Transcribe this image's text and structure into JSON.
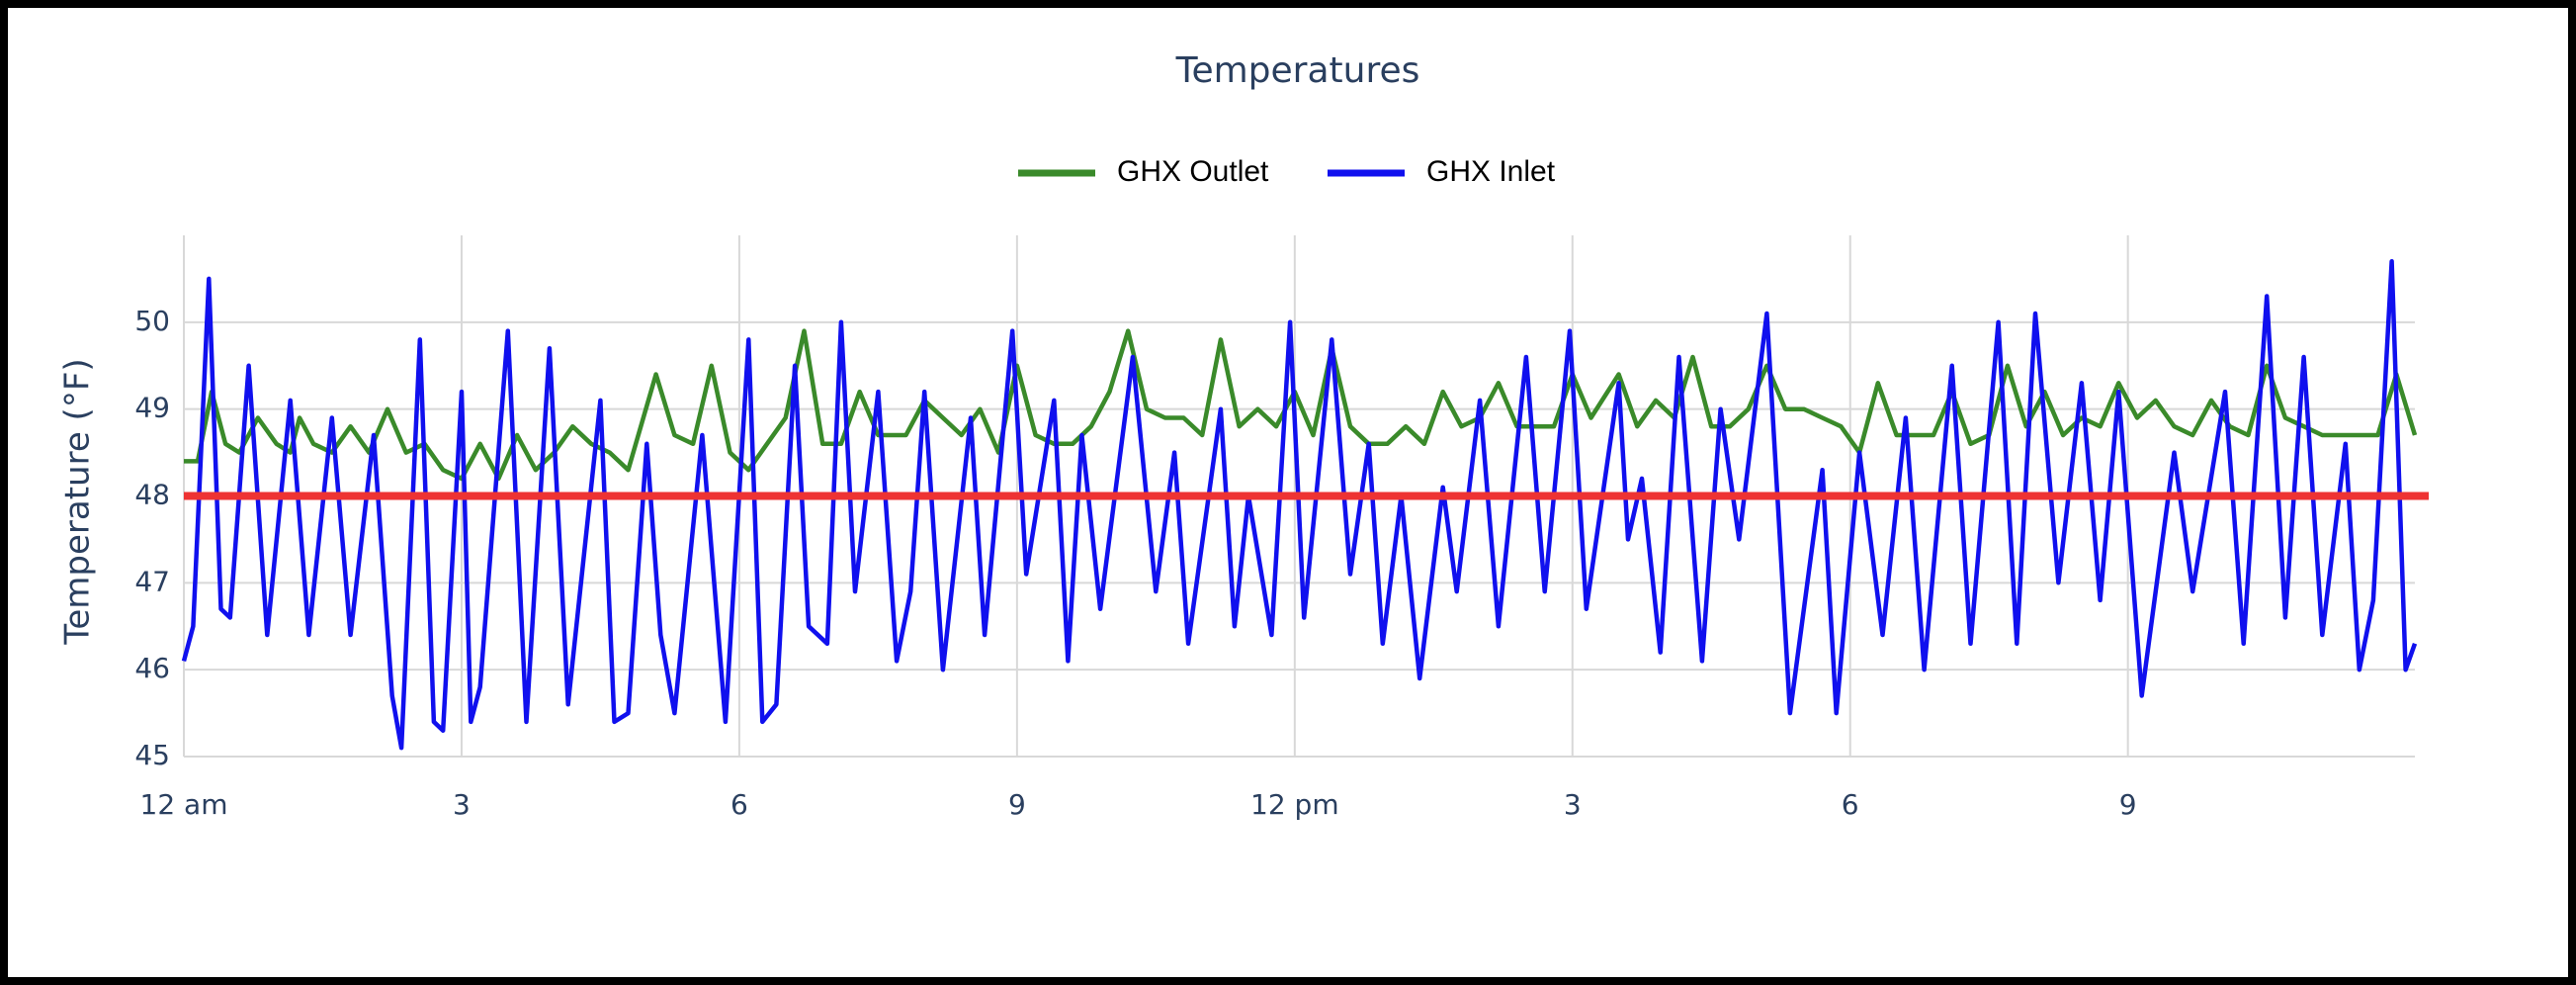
{
  "chart_data": {
    "type": "line",
    "title": "Temperatures",
    "y_label": "Temperature (°F)",
    "xlim": [
      0,
      24.1
    ],
    "ylim": [
      45,
      51
    ],
    "xticks": [
      {
        "value": 0,
        "label": "12 am"
      },
      3,
      6,
      9,
      {
        "value": 12,
        "label": "12 pm"
      },
      {
        "value": 15,
        "label": "3"
      },
      {
        "value": 18,
        "label": "6"
      },
      {
        "value": 21,
        "label": "9"
      }
    ],
    "yticks": [
      45,
      46,
      47,
      48,
      49,
      50
    ],
    "grid": true,
    "reference_line": {
      "value": 48,
      "color": "#ee3333"
    },
    "series": [
      {
        "name": "GHX Outlet",
        "color": "#3a8a2a",
        "x": [
          0,
          0.15,
          0.3,
          0.45,
          0.6,
          0.8,
          1.0,
          1.15,
          1.25,
          1.4,
          1.6,
          1.8,
          2.0,
          2.2,
          2.4,
          2.6,
          2.8,
          3.0,
          3.2,
          3.4,
          3.6,
          3.8,
          4.0,
          4.2,
          4.4,
          4.6,
          4.8,
          5.1,
          5.3,
          5.5,
          5.7,
          5.9,
          6.1,
          6.3,
          6.5,
          6.7,
          6.9,
          7.1,
          7.3,
          7.5,
          7.8,
          8.0,
          8.2,
          8.4,
          8.6,
          8.8,
          9.0,
          9.2,
          9.4,
          9.6,
          9.8,
          10.0,
          10.2,
          10.4,
          10.6,
          10.8,
          11.0,
          11.2,
          11.4,
          11.6,
          11.8,
          12.0,
          12.2,
          12.4,
          12.6,
          12.8,
          13.0,
          13.2,
          13.4,
          13.6,
          13.8,
          14.0,
          14.2,
          14.4,
          14.6,
          14.8,
          15.0,
          15.2,
          15.5,
          15.7,
          15.9,
          16.1,
          16.3,
          16.5,
          16.7,
          16.9,
          17.1,
          17.3,
          17.5,
          17.7,
          17.9,
          18.1,
          18.3,
          18.5,
          18.7,
          18.9,
          19.1,
          19.3,
          19.5,
          19.7,
          19.9,
          20.1,
          20.3,
          20.5,
          20.7,
          20.9,
          21.1,
          21.3,
          21.5,
          21.7,
          21.9,
          22.1,
          22.3,
          22.5,
          22.7,
          22.9,
          23.1,
          23.3,
          23.5,
          23.7,
          23.9,
          24.1
        ],
        "values": [
          48.4,
          48.4,
          49.2,
          48.6,
          48.5,
          48.9,
          48.6,
          48.5,
          48.9,
          48.6,
          48.5,
          48.8,
          48.5,
          49.0,
          48.5,
          48.6,
          48.3,
          48.2,
          48.6,
          48.2,
          48.7,
          48.3,
          48.5,
          48.8,
          48.6,
          48.5,
          48.3,
          49.4,
          48.7,
          48.6,
          49.5,
          48.5,
          48.3,
          48.6,
          48.9,
          49.9,
          48.6,
          48.6,
          49.2,
          48.7,
          48.7,
          49.1,
          48.9,
          48.7,
          49.0,
          48.5,
          49.5,
          48.7,
          48.6,
          48.6,
          48.8,
          49.2,
          49.9,
          49.0,
          48.9,
          48.9,
          48.7,
          49.8,
          48.8,
          49.0,
          48.8,
          49.2,
          48.7,
          49.7,
          48.8,
          48.6,
          48.6,
          48.8,
          48.6,
          49.2,
          48.8,
          48.9,
          49.3,
          48.8,
          48.8,
          48.8,
          49.4,
          48.9,
          49.4,
          48.8,
          49.1,
          48.9,
          49.6,
          48.8,
          48.8,
          49.0,
          49.5,
          49.0,
          49.0,
          48.9,
          48.8,
          48.5,
          49.3,
          48.7,
          48.7,
          48.7,
          49.2,
          48.6,
          48.7,
          49.5,
          48.8,
          49.2,
          48.7,
          48.9,
          48.8,
          49.3,
          48.9,
          49.1,
          48.8,
          48.7,
          49.1,
          48.8,
          48.7,
          49.5,
          48.9,
          48.8,
          48.7,
          48.7,
          48.7,
          48.7,
          49.4,
          48.7
        ]
      },
      {
        "name": "GHX Inlet",
        "color": "#1010ee",
        "x": [
          0,
          0.1,
          0.27,
          0.4,
          0.5,
          0.7,
          0.9,
          1.15,
          1.35,
          1.6,
          1.8,
          2.05,
          2.25,
          2.35,
          2.55,
          2.7,
          2.8,
          3.0,
          3.1,
          3.2,
          3.5,
          3.7,
          3.95,
          4.15,
          4.5,
          4.65,
          4.8,
          5.0,
          5.15,
          5.3,
          5.6,
          5.85,
          6.1,
          6.25,
          6.4,
          6.6,
          6.75,
          6.95,
          7.1,
          7.25,
          7.5,
          7.7,
          7.85,
          8.0,
          8.2,
          8.5,
          8.65,
          8.95,
          9.1,
          9.4,
          9.55,
          9.7,
          9.9,
          10.25,
          10.5,
          10.7,
          10.85,
          11.2,
          11.35,
          11.5,
          11.75,
          11.95,
          12.1,
          12.4,
          12.6,
          12.8,
          12.95,
          13.15,
          13.35,
          13.6,
          13.75,
          14.0,
          14.2,
          14.5,
          14.7,
          14.97,
          15.15,
          15.5,
          15.6,
          15.75,
          15.95,
          16.15,
          16.4,
          16.6,
          16.8,
          17.1,
          17.35,
          17.7,
          17.85,
          18.1,
          18.35,
          18.6,
          18.8,
          19.1,
          19.3,
          19.6,
          19.8,
          20.0,
          20.25,
          20.5,
          20.7,
          20.9,
          21.15,
          21.5,
          21.7,
          22.05,
          22.25,
          22.5,
          22.7,
          22.9,
          23.1,
          23.35,
          23.5,
          23.65,
          23.85,
          24.0,
          24.1
        ],
        "values": [
          46.1,
          46.5,
          50.5,
          46.7,
          46.6,
          49.5,
          46.4,
          49.1,
          46.4,
          48.9,
          46.4,
          48.7,
          45.7,
          45.1,
          49.8,
          45.4,
          45.3,
          49.2,
          45.4,
          45.8,
          49.9,
          45.4,
          49.7,
          45.6,
          49.1,
          45.4,
          45.5,
          48.6,
          46.4,
          45.5,
          48.7,
          45.4,
          49.8,
          45.4,
          45.6,
          49.5,
          46.5,
          46.3,
          50.0,
          46.9,
          49.2,
          46.1,
          46.9,
          49.2,
          46.0,
          48.9,
          46.4,
          49.9,
          47.1,
          49.1,
          46.1,
          48.7,
          46.7,
          49.6,
          46.9,
          48.5,
          46.3,
          49.0,
          46.5,
          48.0,
          46.4,
          50.0,
          46.6,
          49.8,
          47.1,
          48.6,
          46.3,
          48.0,
          45.9,
          48.1,
          46.9,
          49.1,
          46.5,
          49.6,
          46.9,
          49.9,
          46.7,
          49.3,
          47.5,
          48.2,
          46.2,
          49.6,
          46.1,
          49.0,
          47.5,
          50.1,
          45.5,
          48.3,
          45.5,
          48.5,
          46.4,
          48.9,
          46.0,
          49.5,
          46.3,
          50.0,
          46.3,
          50.1,
          47.0,
          49.3,
          46.8,
          49.2,
          45.7,
          48.5,
          46.9,
          49.2,
          46.3,
          50.3,
          46.6,
          49.6,
          46.4,
          48.6,
          46.0,
          46.8,
          50.7,
          46.0,
          46.3
        ]
      }
    ]
  }
}
